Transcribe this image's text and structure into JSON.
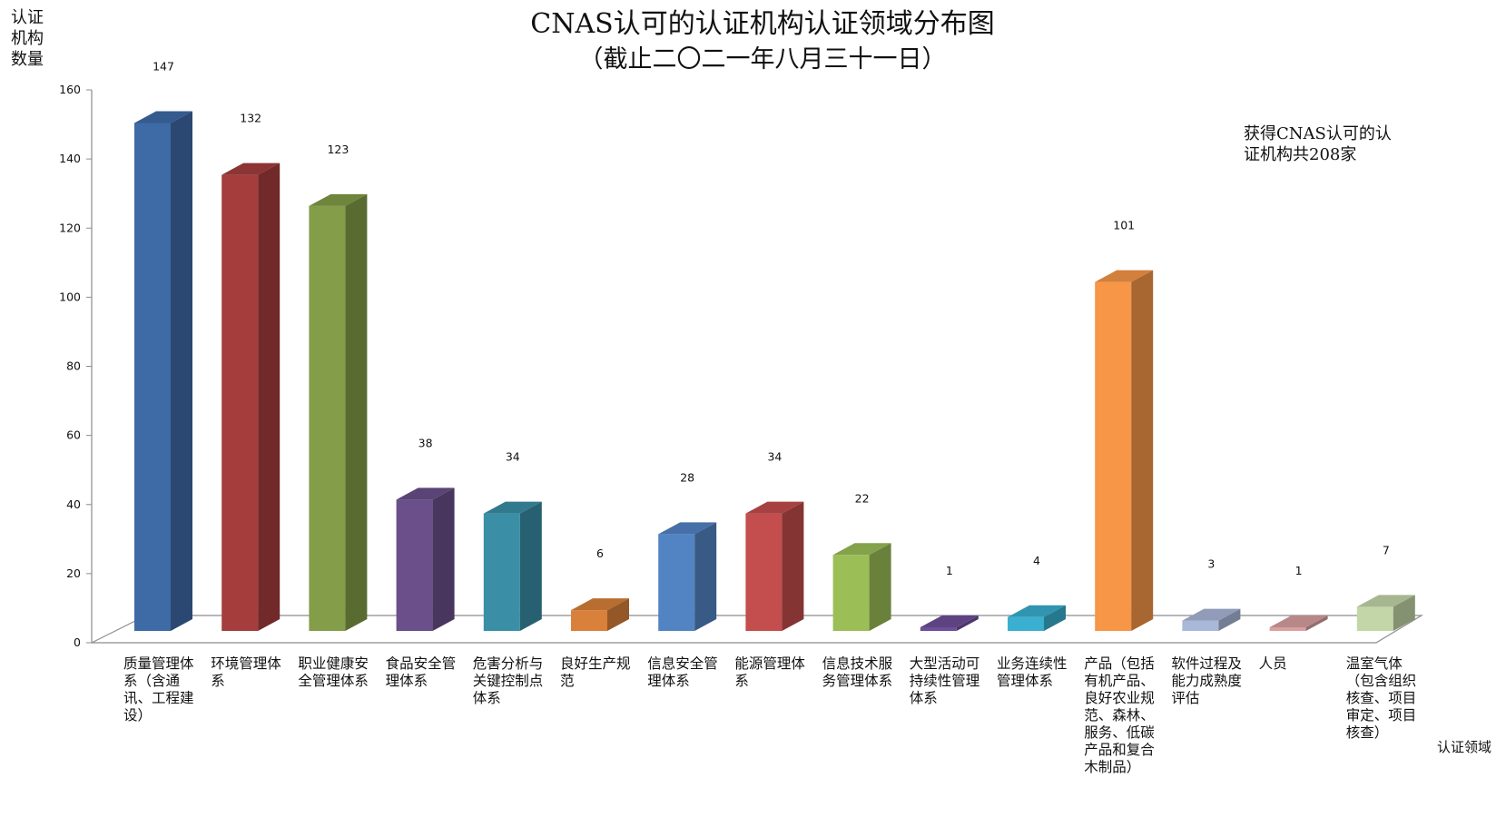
{
  "chart_data": {
    "type": "bar",
    "title": "CNAS认可的认证机构认证领域分布图",
    "subtitle": "（截止二〇二一年八月三十一日）",
    "ylabel": "认证机构数量",
    "xlabel": "认证领域",
    "ylim": [
      0,
      160
    ],
    "yticks": [
      0,
      20,
      40,
      60,
      80,
      100,
      120,
      140,
      160
    ],
    "annotation": "获得CNAS认可的认证机构共208家",
    "grid": false,
    "legend": "none",
    "categories": [
      "质量管理体系（含通讯、工程建设）",
      "环境管理体系",
      "职业健康安全管理体系",
      "食品安全管理体系",
      "危害分析与关键控制点体系",
      "良好生产规范",
      "信息安全管理体系",
      "能源管理体系",
      "信息技术服务管理体系",
      "大型活动可持续性管理体系",
      "业务连续性管理体系",
      "产品（包括有机产品、良好农业规范、森林、服务、低碳产品和复合木制品）",
      "软件过程及能力成熟度评估",
      "人员",
      "温室气体（包含组织 核查、项目审定、项目核查）"
    ],
    "values": [
      147,
      132,
      123,
      38,
      34,
      6,
      28,
      34,
      22,
      1,
      4,
      101,
      3,
      1,
      7
    ],
    "colors": [
      "#3E6AA6",
      "#A63D3D",
      "#839D48",
      "#6A4F8A",
      "#3A8FA6",
      "#D9803A",
      "#5284C4",
      "#C44D4D",
      "#9BBE57",
      "#6E4F9A",
      "#3AAFD0",
      "#F79646",
      "#A9B8D8",
      "#D9A0A0",
      "#C3D6A8"
    ]
  }
}
